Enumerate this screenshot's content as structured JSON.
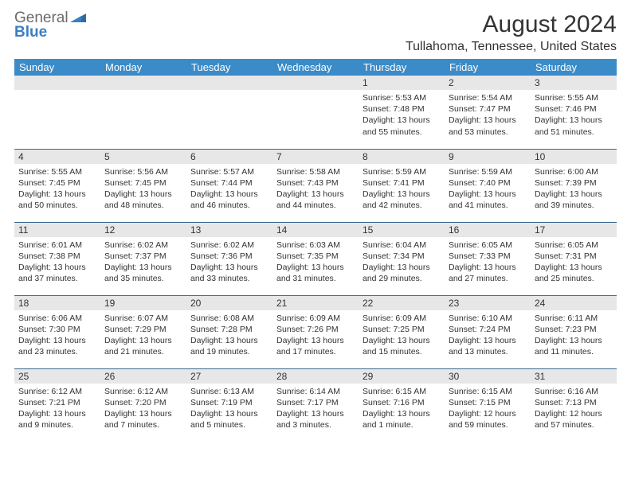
{
  "logo": {
    "general": "General",
    "blue": "Blue"
  },
  "title": "August 2024",
  "location": "Tullahoma, Tennessee, United States",
  "colors": {
    "header_bg": "#3b8bc9",
    "header_text": "#ffffff",
    "daynum_bg": "#e7e7e7",
    "row_border": "#3b6a94",
    "logo_gray": "#6b6b6b",
    "logo_blue": "#3a7fc3"
  },
  "day_headers": [
    "Sunday",
    "Monday",
    "Tuesday",
    "Wednesday",
    "Thursday",
    "Friday",
    "Saturday"
  ],
  "weeks": [
    [
      null,
      null,
      null,
      null,
      {
        "n": "1",
        "sr": "5:53 AM",
        "ss": "7:48 PM",
        "dl": "13 hours and 55 minutes."
      },
      {
        "n": "2",
        "sr": "5:54 AM",
        "ss": "7:47 PM",
        "dl": "13 hours and 53 minutes."
      },
      {
        "n": "3",
        "sr": "5:55 AM",
        "ss": "7:46 PM",
        "dl": "13 hours and 51 minutes."
      }
    ],
    [
      {
        "n": "4",
        "sr": "5:55 AM",
        "ss": "7:45 PM",
        "dl": "13 hours and 50 minutes."
      },
      {
        "n": "5",
        "sr": "5:56 AM",
        "ss": "7:45 PM",
        "dl": "13 hours and 48 minutes."
      },
      {
        "n": "6",
        "sr": "5:57 AM",
        "ss": "7:44 PM",
        "dl": "13 hours and 46 minutes."
      },
      {
        "n": "7",
        "sr": "5:58 AM",
        "ss": "7:43 PM",
        "dl": "13 hours and 44 minutes."
      },
      {
        "n": "8",
        "sr": "5:59 AM",
        "ss": "7:41 PM",
        "dl": "13 hours and 42 minutes."
      },
      {
        "n": "9",
        "sr": "5:59 AM",
        "ss": "7:40 PM",
        "dl": "13 hours and 41 minutes."
      },
      {
        "n": "10",
        "sr": "6:00 AM",
        "ss": "7:39 PM",
        "dl": "13 hours and 39 minutes."
      }
    ],
    [
      {
        "n": "11",
        "sr": "6:01 AM",
        "ss": "7:38 PM",
        "dl": "13 hours and 37 minutes."
      },
      {
        "n": "12",
        "sr": "6:02 AM",
        "ss": "7:37 PM",
        "dl": "13 hours and 35 minutes."
      },
      {
        "n": "13",
        "sr": "6:02 AM",
        "ss": "7:36 PM",
        "dl": "13 hours and 33 minutes."
      },
      {
        "n": "14",
        "sr": "6:03 AM",
        "ss": "7:35 PM",
        "dl": "13 hours and 31 minutes."
      },
      {
        "n": "15",
        "sr": "6:04 AM",
        "ss": "7:34 PM",
        "dl": "13 hours and 29 minutes."
      },
      {
        "n": "16",
        "sr": "6:05 AM",
        "ss": "7:33 PM",
        "dl": "13 hours and 27 minutes."
      },
      {
        "n": "17",
        "sr": "6:05 AM",
        "ss": "7:31 PM",
        "dl": "13 hours and 25 minutes."
      }
    ],
    [
      {
        "n": "18",
        "sr": "6:06 AM",
        "ss": "7:30 PM",
        "dl": "13 hours and 23 minutes."
      },
      {
        "n": "19",
        "sr": "6:07 AM",
        "ss": "7:29 PM",
        "dl": "13 hours and 21 minutes."
      },
      {
        "n": "20",
        "sr": "6:08 AM",
        "ss": "7:28 PM",
        "dl": "13 hours and 19 minutes."
      },
      {
        "n": "21",
        "sr": "6:09 AM",
        "ss": "7:26 PM",
        "dl": "13 hours and 17 minutes."
      },
      {
        "n": "22",
        "sr": "6:09 AM",
        "ss": "7:25 PM",
        "dl": "13 hours and 15 minutes."
      },
      {
        "n": "23",
        "sr": "6:10 AM",
        "ss": "7:24 PM",
        "dl": "13 hours and 13 minutes."
      },
      {
        "n": "24",
        "sr": "6:11 AM",
        "ss": "7:23 PM",
        "dl": "13 hours and 11 minutes."
      }
    ],
    [
      {
        "n": "25",
        "sr": "6:12 AM",
        "ss": "7:21 PM",
        "dl": "13 hours and 9 minutes."
      },
      {
        "n": "26",
        "sr": "6:12 AM",
        "ss": "7:20 PM",
        "dl": "13 hours and 7 minutes."
      },
      {
        "n": "27",
        "sr": "6:13 AM",
        "ss": "7:19 PM",
        "dl": "13 hours and 5 minutes."
      },
      {
        "n": "28",
        "sr": "6:14 AM",
        "ss": "7:17 PM",
        "dl": "13 hours and 3 minutes."
      },
      {
        "n": "29",
        "sr": "6:15 AM",
        "ss": "7:16 PM",
        "dl": "13 hours and 1 minute."
      },
      {
        "n": "30",
        "sr": "6:15 AM",
        "ss": "7:15 PM",
        "dl": "12 hours and 59 minutes."
      },
      {
        "n": "31",
        "sr": "6:16 AM",
        "ss": "7:13 PM",
        "dl": "12 hours and 57 minutes."
      }
    ]
  ],
  "labels": {
    "sunrise": "Sunrise: ",
    "sunset": "Sunset: ",
    "daylight": "Daylight: "
  }
}
